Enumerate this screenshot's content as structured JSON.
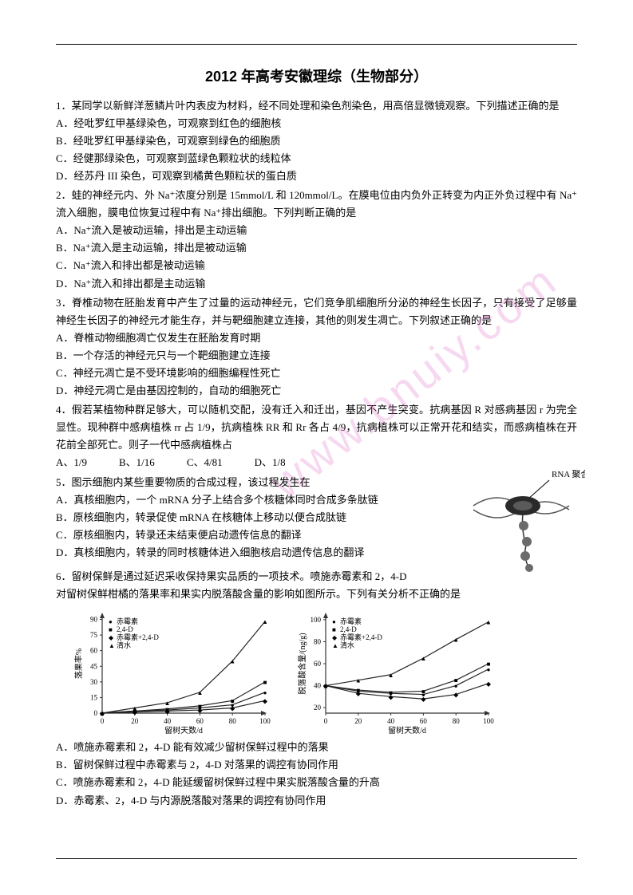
{
  "title": "2012 年高考安徽理综（生物部分）",
  "watermark": "www.bnuiy.com",
  "q1": {
    "stem": "1．某同学以新鲜洋葱鳞片叶内表皮为材料，经不同处理和染色剂染色，用高倍显微镜观察。下列描述正确的是",
    "A": "A．经吡罗红甲基绿染色，可观察到红色的细胞核",
    "B": "B．经吡罗红甲基绿染色，可观察到绿色的细胞质",
    "C": "C．经健那绿染色，可观察到蓝绿色颗粒状的线粒体",
    "D": "D．经苏丹 III 染色，可观察到橘黄色颗粒状的蛋白质"
  },
  "q2": {
    "stem": "2．蛙的神经元内、外 Na⁺浓度分别是 15mmol/L 和 120mmol/L。在膜电位由内负外正转变为内正外负过程中有 Na⁺流入细胞，膜电位恢复过程中有 Na⁺排出细胞。下列判断正确的是",
    "A": "A．Na⁺流入是被动运输，排出是主动运输",
    "B": "B．Na⁺流入是主动运输，排出是被动运输",
    "C": "C．Na⁺流入和排出都是被动运输",
    "D": "D．Na⁺流入和排出都是主动运输"
  },
  "q3": {
    "stem": "3．脊椎动物在胚胎发育中产生了过量的运动神经元，它们竞争肌细胞所分泌的神经生长因子，只有接受了足够量神经生长因子的神经元才能生存，并与靶细胞建立连接，其他的则发生凋亡。下列叙述正确的是",
    "A": "A．脊椎动物细胞凋亡仅发生在胚胎发育时期",
    "B": "B．一个存活的神经元只与一个靶细胞建立连接",
    "C": "C．神经元凋亡是不受环境影响的细胞编程性死亡",
    "D": "D．神经元凋亡是由基因控制的，自动的细胞死亡"
  },
  "q4": {
    "stem": "4．假若某植物种群足够大，可以随机交配，没有迁入和迁出，基因不产生突变。抗病基因 R 对感病基因 r 为完全显性。现种群中感病植株 rr 占 1/9，抗病植株 RR 和 Rr 各占 4/9，抗病植株可以正常开花和结实，而感病植株在开花前全部死亡。则子一代中感病植株占",
    "A": "A、1/9",
    "B": "B、1/16",
    "C": "C、4/81",
    "D": "D、1/8"
  },
  "q5": {
    "stem": "5．图示细胞内某些重要物质的合成过程，该过程发生在",
    "A": "A．真核细胞内，一个 mRNA 分子上结合多个核糖体同时合成多条肽链",
    "B": "B．原核细胞内，转录促使 mRNA 在核糖体上移动以便合成肽链",
    "C": "C．原核细胞内，转录还未结束便启动遗传信息的翻译",
    "D": "D．真核细胞内，转录的同时核糖体进入细胞核启动遗传信息的翻译",
    "diagram_label": "RNA 聚合酶"
  },
  "q6": {
    "stem1": "6．留树保鲜是通过延迟采收保持果实品质的一项技术。喷施赤霉素和 2，4-D",
    "stem2": "对留树保鲜柑橘的落果率和果实内脱落酸含量的影响如图所示。下列有关分析不正确的是",
    "A": "A．喷施赤霉素和 2，4-D 能有效减少留树保鲜过程中的落果",
    "B": "B．留树保鲜过程中赤霉素与 2，4-D 对落果的调控有协同作用",
    "C": "C．喷施赤霉素和 2，4-D 能延缓留树保鲜过程中果实脱落酸含量的升高",
    "D": "D．赤霉素、2，4-D 与内源脱落酸对落果的调控有协同作用"
  },
  "chart1": {
    "xlabel": "留树天数/d",
    "ylabel": "落果率%",
    "xticks": [
      0,
      20,
      40,
      60,
      80,
      100
    ],
    "yticks": [
      0,
      15,
      30,
      45,
      60,
      75,
      90
    ],
    "legend": [
      "赤霉素",
      "2,4-D",
      "赤霉素+2,4-D",
      "清水"
    ],
    "colors": {
      "axis": "#333333",
      "grid": "#999999",
      "line": "#222222"
    },
    "series": {
      "gibberellin": [
        [
          0,
          0
        ],
        [
          20,
          2
        ],
        [
          40,
          3
        ],
        [
          60,
          5
        ],
        [
          80,
          8
        ],
        [
          100,
          20
        ]
      ],
      "24d": [
        [
          0,
          0
        ],
        [
          20,
          2
        ],
        [
          40,
          4
        ],
        [
          60,
          7
        ],
        [
          80,
          12
        ],
        [
          100,
          30
        ]
      ],
      "both": [
        [
          0,
          0
        ],
        [
          20,
          1
        ],
        [
          40,
          2
        ],
        [
          60,
          3
        ],
        [
          80,
          5
        ],
        [
          100,
          12
        ]
      ],
      "water": [
        [
          0,
          0
        ],
        [
          20,
          5
        ],
        [
          40,
          10
        ],
        [
          60,
          20
        ],
        [
          80,
          50
        ],
        [
          100,
          88
        ]
      ]
    }
  },
  "chart2": {
    "xlabel": "留树天数/d",
    "ylabel": "脱落酸含量/(ng/g)",
    "xticks": [
      0,
      20,
      40,
      60,
      80,
      100
    ],
    "yticks": [
      20,
      40,
      60,
      80,
      100
    ],
    "legend": [
      "赤霉素",
      "2,4-D",
      "赤霉素+2,4-D",
      "清水"
    ],
    "colors": {
      "axis": "#333333",
      "grid": "#999999",
      "line": "#222222"
    },
    "series": {
      "gibberellin": [
        [
          0,
          40
        ],
        [
          20,
          35
        ],
        [
          40,
          33
        ],
        [
          60,
          32
        ],
        [
          80,
          40
        ],
        [
          100,
          55
        ]
      ],
      "24d": [
        [
          0,
          40
        ],
        [
          20,
          36
        ],
        [
          40,
          34
        ],
        [
          60,
          35
        ],
        [
          80,
          45
        ],
        [
          100,
          60
        ]
      ],
      "both": [
        [
          0,
          40
        ],
        [
          20,
          33
        ],
        [
          40,
          30
        ],
        [
          60,
          28
        ],
        [
          80,
          32
        ],
        [
          100,
          42
        ]
      ],
      "water": [
        [
          0,
          40
        ],
        [
          20,
          45
        ],
        [
          40,
          50
        ],
        [
          60,
          65
        ],
        [
          80,
          82
        ],
        [
          100,
          98
        ]
      ]
    }
  }
}
